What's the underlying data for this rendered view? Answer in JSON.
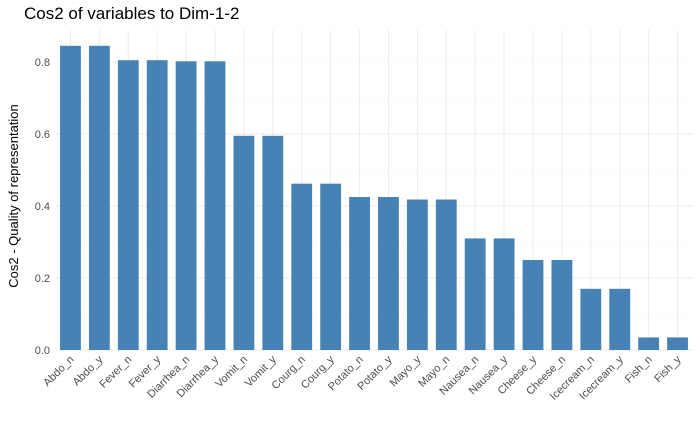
{
  "chart_data": {
    "type": "bar",
    "title": "Cos2 of variables to Dim-1-2",
    "xlabel": "",
    "ylabel": "Cos2 - Quality of representation",
    "ylim": [
      0,
      0.85
    ],
    "yticks": [
      "0.0",
      "0.2",
      "0.4",
      "0.6",
      "0.8"
    ],
    "grid": true,
    "bar_color": "#4682B4",
    "categories": [
      "Abdo_n",
      "Abdo_y",
      "Fever_n",
      "Fever_y",
      "Diarrhea_n",
      "Diarrhea_y",
      "Vomit_n",
      "Vomit_y",
      "Courg_n",
      "Courg_y",
      "Potato_n",
      "Potato_y",
      "Mayo_y",
      "Mayo_n",
      "Nausea_n",
      "Nausea_y",
      "Cheese_y",
      "Cheese_n",
      "Icecream_n",
      "Icecream_y",
      "Fish_n",
      "Fish_y"
    ],
    "values": [
      0.845,
      0.845,
      0.805,
      0.805,
      0.802,
      0.802,
      0.595,
      0.595,
      0.462,
      0.462,
      0.425,
      0.425,
      0.418,
      0.418,
      0.31,
      0.31,
      0.25,
      0.25,
      0.17,
      0.17,
      0.035,
      0.035
    ]
  }
}
